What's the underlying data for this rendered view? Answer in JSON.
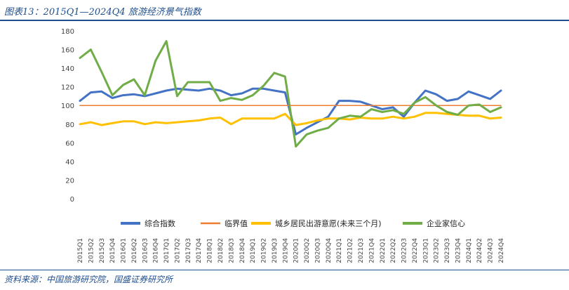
{
  "figure_title": "图表13：2015Q1—2024Q4 旅游经济景气指数",
  "source_note": "资料来源：中国旅游研究院，国盛证券研究所",
  "colors": {
    "composite": "#4472C4",
    "critical": "#ED7D31",
    "residents": "#FFC000",
    "enterprise": "#70AD47",
    "header": "#1f4e8c"
  },
  "chart_data": {
    "type": "line",
    "ylim": [
      0,
      180
    ],
    "y_ticks": [
      0,
      20,
      40,
      60,
      80,
      100,
      120,
      140,
      160,
      180
    ],
    "grid": false,
    "legend_position": "bottom",
    "categories": [
      "2015Q1",
      "2015Q2",
      "2015Q3",
      "2015Q4",
      "2016Q1",
      "2016Q2",
      "2016Q3",
      "2016Q4",
      "2017Q1",
      "2017Q2",
      "2017Q3",
      "2017Q4",
      "2018Q1",
      "2018Q2",
      "2018Q3",
      "2018Q4",
      "2019Q1",
      "2019Q2",
      "2019Q3",
      "2019Q4",
      "2020Q1",
      "2020Q2",
      "2020Q3",
      "2020Q4",
      "2021Q1",
      "2021Q2",
      "2021Q3",
      "2021Q4",
      "2022Q1",
      "2022Q2",
      "2022Q3",
      "2022Q4",
      "2023Q1",
      "2023Q2",
      "2023Q3",
      "2023Q4",
      "2024Q1",
      "2024Q2",
      "2024Q3",
      "2024Q4"
    ],
    "series": [
      {
        "name": "综合指数",
        "color_key": "composite",
        "width": 3,
        "values": [
          105,
          114,
          115,
          108,
          111,
          112,
          110,
          113,
          116,
          118,
          117,
          116,
          118,
          116,
          111,
          113,
          118,
          118,
          116,
          114,
          69,
          76,
          82,
          88,
          105,
          105,
          104,
          100,
          96,
          98,
          88,
          103,
          116,
          112,
          105,
          107,
          115,
          111,
          107,
          116
        ]
      },
      {
        "name": "临界值",
        "color_key": "critical",
        "width": 1.5,
        "values": [
          100,
          100,
          100,
          100,
          100,
          100,
          100,
          100,
          100,
          100,
          100,
          100,
          100,
          100,
          100,
          100,
          100,
          100,
          100,
          100,
          100,
          100,
          100,
          100,
          100,
          100,
          100,
          100,
          100,
          100,
          100,
          100,
          100,
          100,
          100,
          100,
          100,
          100,
          100,
          100
        ]
      },
      {
        "name": "城乡居民出游意愿(未来三个月)",
        "color_key": "residents",
        "width": 3,
        "values": [
          80,
          82,
          79,
          81,
          83,
          83,
          80,
          82,
          81,
          82,
          83,
          84,
          86,
          87,
          80,
          86,
          86,
          86,
          86,
          91,
          79,
          81,
          84,
          86,
          86,
          85,
          87,
          86,
          86,
          88,
          86,
          88,
          92,
          92,
          91,
          90,
          89,
          89,
          86,
          87
        ]
      },
      {
        "name": "企业家信心",
        "color_key": "enterprise",
        "width": 3,
        "values": [
          151,
          160,
          136,
          111,
          122,
          128,
          111,
          148,
          169,
          110,
          125,
          125,
          125,
          105,
          108,
          106,
          111,
          121,
          135,
          131,
          56,
          69,
          73,
          76,
          86,
          89,
          88,
          96,
          93,
          95,
          91,
          103,
          109,
          100,
          93,
          90,
          100,
          101,
          93,
          98
        ]
      }
    ]
  }
}
